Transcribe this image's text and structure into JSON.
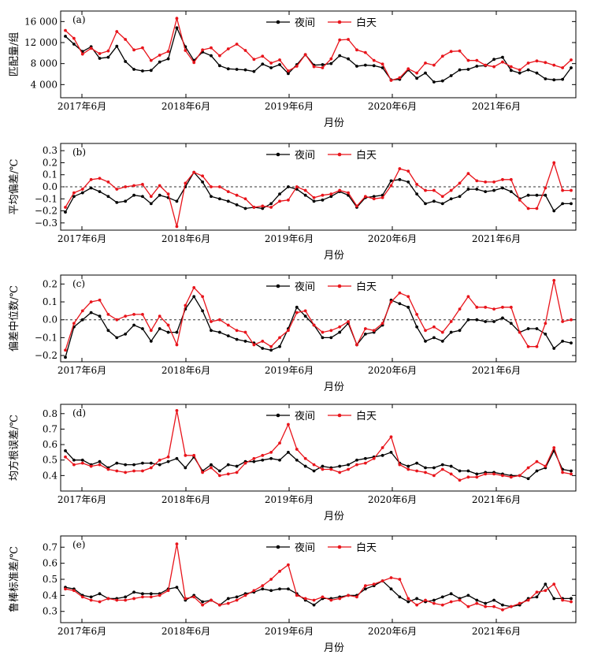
{
  "chart_data": [
    {
      "type": "line",
      "panel_label": "(a)",
      "ylabel": "匹配量/组",
      "xlabel": "月份",
      "x_tick_labels": [
        "2017年6月",
        "2018年6月",
        "2019年6月",
        "2020年6月",
        "2021年6月"
      ],
      "y_ticks": [
        4000,
        8000,
        12000,
        16000
      ],
      "y_tick_labels": [
        "4 000",
        "8 000",
        "12 000",
        "16 000"
      ],
      "ylim": [
        1500,
        18000
      ],
      "zero_line": false,
      "legend": {
        "position": "top-center",
        "entries": [
          "夜间",
          "白天"
        ]
      },
      "colors": {
        "night": "#000000",
        "day": "#e8141b"
      },
      "series": [
        {
          "name": "夜间",
          "values": [
            13200,
            11700,
            10300,
            11200,
            9000,
            9200,
            11300,
            8400,
            6900,
            6600,
            6700,
            8300,
            8900,
            14800,
            11200,
            8600,
            10200,
            9500,
            7600,
            7000,
            6900,
            6800,
            6500,
            7900,
            7200,
            7800,
            6100,
            7800,
            9700,
            7700,
            7800,
            8000,
            9500,
            8900,
            7500,
            7700,
            7600,
            7200,
            4900,
            5000,
            6800,
            5200,
            6200,
            4500,
            4700,
            5700,
            6800,
            6900,
            7500,
            7600,
            8800,
            9200,
            6700,
            6200,
            6800,
            6200,
            5100,
            4900,
            5000,
            7200
          ]
        },
        {
          "name": "白天",
          "values": [
            14300,
            12800,
            9800,
            10900,
            9900,
            10400,
            14100,
            12600,
            10600,
            11000,
            8600,
            9600,
            10300,
            16600,
            10500,
            8200,
            10600,
            11000,
            9500,
            10800,
            11700,
            10500,
            8800,
            9400,
            8100,
            8700,
            6600,
            7500,
            9700,
            7400,
            7200,
            8900,
            12500,
            12600,
            10600,
            10100,
            8600,
            7900,
            4800,
            5300,
            7000,
            6200,
            8100,
            7700,
            9400,
            10300,
            10400,
            8600,
            8600,
            7700,
            7400,
            8300,
            7400,
            6800,
            8100,
            8500,
            8200,
            7700,
            7200,
            8700
          ]
        }
      ]
    },
    {
      "type": "line",
      "panel_label": "(b)",
      "ylabel": "平均偏差/℃",
      "xlabel": "月份",
      "x_tick_labels": [
        "2017年6月",
        "2018年6月",
        "2019年6月",
        "2020年6月",
        "2021年6月"
      ],
      "y_ticks": [
        -0.3,
        -0.2,
        -0.1,
        0.0,
        0.1,
        0.2,
        0.3
      ],
      "y_tick_labels": [
        "−0.3",
        "−0.2",
        "−0.1",
        "0.0",
        "0.1",
        "0.2",
        "0.3"
      ],
      "ylim": [
        -0.36,
        0.36
      ],
      "zero_line": true,
      "legend": {
        "position": "top-center",
        "entries": [
          "夜间",
          "白天"
        ]
      },
      "colors": {
        "night": "#000000",
        "day": "#e8141b"
      },
      "series": [
        {
          "name": "夜间",
          "values": [
            -0.21,
            -0.08,
            -0.05,
            -0.01,
            -0.04,
            -0.08,
            -0.13,
            -0.12,
            -0.07,
            -0.08,
            -0.14,
            -0.07,
            -0.09,
            -0.12,
            0.0,
            0.12,
            0.04,
            -0.08,
            -0.1,
            -0.12,
            -0.15,
            -0.18,
            -0.17,
            -0.18,
            -0.14,
            -0.06,
            0.0,
            -0.02,
            -0.07,
            -0.12,
            -0.11,
            -0.08,
            -0.04,
            -0.07,
            -0.17,
            -0.09,
            -0.08,
            -0.07,
            0.05,
            0.06,
            0.04,
            -0.06,
            -0.14,
            -0.12,
            -0.14,
            -0.1,
            -0.08,
            -0.02,
            -0.02,
            -0.04,
            -0.03,
            -0.01,
            -0.04,
            -0.1,
            -0.07,
            -0.07,
            -0.07,
            -0.2,
            -0.14,
            -0.14
          ]
        },
        {
          "name": "白天",
          "values": [
            -0.17,
            -0.05,
            -0.02,
            0.06,
            0.07,
            0.04,
            -0.02,
            0.0,
            0.01,
            0.02,
            -0.08,
            0.01,
            -0.06,
            -0.33,
            0.03,
            0.12,
            0.09,
            0.0,
            0.0,
            -0.04,
            -0.07,
            -0.1,
            -0.17,
            -0.16,
            -0.17,
            -0.12,
            -0.11,
            0.0,
            -0.03,
            -0.09,
            -0.07,
            -0.06,
            -0.03,
            -0.05,
            -0.16,
            -0.08,
            -0.1,
            -0.09,
            0.01,
            0.15,
            0.13,
            0.02,
            -0.03,
            -0.03,
            -0.08,
            -0.03,
            0.03,
            0.11,
            0.05,
            0.04,
            0.04,
            0.06,
            0.06,
            -0.11,
            -0.18,
            -0.18,
            -0.01,
            0.2,
            -0.03,
            -0.03
          ]
        }
      ]
    },
    {
      "type": "line",
      "panel_label": "(c)",
      "ylabel": "偏差中位数/℃",
      "xlabel": "月份",
      "x_tick_labels": [
        "2017年6月",
        "2018年6月",
        "2019年6月",
        "2020年6月",
        "2021年6月"
      ],
      "y_ticks": [
        -0.2,
        -0.1,
        0.0,
        0.1,
        0.2
      ],
      "y_tick_labels": [
        "−0.2",
        "−0.1",
        "0.0",
        "0.1",
        "0.2"
      ],
      "ylim": [
        -0.235,
        0.25
      ],
      "zero_line": true,
      "legend": {
        "position": "top-center",
        "entries": [
          "夜间",
          "白天"
        ]
      },
      "colors": {
        "night": "#000000",
        "day": "#e8141b"
      },
      "series": [
        {
          "name": "夜间",
          "values": [
            -0.21,
            -0.04,
            0.0,
            0.04,
            0.02,
            -0.06,
            -0.1,
            -0.08,
            -0.03,
            -0.05,
            -0.12,
            -0.05,
            -0.07,
            -0.07,
            0.06,
            0.13,
            0.05,
            -0.06,
            -0.07,
            -0.09,
            -0.11,
            -0.12,
            -0.13,
            -0.16,
            -0.17,
            -0.15,
            -0.05,
            0.07,
            0.02,
            -0.03,
            -0.1,
            -0.1,
            -0.07,
            -0.02,
            -0.14,
            -0.08,
            -0.07,
            -0.03,
            0.11,
            0.09,
            0.07,
            -0.04,
            -0.12,
            -0.1,
            -0.12,
            -0.07,
            -0.06,
            0.0,
            0.0,
            -0.01,
            -0.01,
            0.01,
            -0.02,
            -0.07,
            -0.05,
            -0.05,
            -0.08,
            -0.16,
            -0.12,
            -0.13
          ]
        },
        {
          "name": "白天",
          "values": [
            -0.17,
            -0.02,
            0.05,
            0.1,
            0.11,
            0.03,
            0.0,
            0.02,
            0.03,
            0.03,
            -0.06,
            0.02,
            -0.03,
            -0.14,
            0.08,
            0.18,
            0.13,
            -0.01,
            0.0,
            -0.03,
            -0.06,
            -0.07,
            -0.14,
            -0.12,
            -0.15,
            -0.1,
            -0.06,
            0.04,
            0.05,
            -0.03,
            -0.07,
            -0.06,
            -0.04,
            -0.01,
            -0.14,
            -0.05,
            -0.06,
            -0.02,
            0.1,
            0.15,
            0.13,
            0.03,
            -0.06,
            -0.04,
            -0.07,
            -0.01,
            0.06,
            0.13,
            0.07,
            0.07,
            0.06,
            0.07,
            0.07,
            -0.07,
            -0.15,
            -0.15,
            -0.02,
            0.22,
            -0.01,
            0.0
          ]
        }
      ]
    },
    {
      "type": "line",
      "panel_label": "(d)",
      "ylabel": "均方根误差/℃",
      "xlabel": "月份",
      "x_tick_labels": [
        "2017年6月",
        "2018年6月",
        "2019年6月",
        "2020年6月",
        "2021年6月"
      ],
      "y_ticks": [
        0.4,
        0.5,
        0.6,
        0.7,
        0.8
      ],
      "y_tick_labels": [
        "0.4",
        "0.5",
        "0.6",
        "0.7",
        "0.8"
      ],
      "ylim": [
        0.3,
        0.86
      ],
      "zero_line": false,
      "legend": {
        "position": "top-center",
        "entries": [
          "夜间",
          "白天"
        ]
      },
      "colors": {
        "night": "#000000",
        "day": "#e8141b"
      },
      "series": [
        {
          "name": "夜间",
          "values": [
            0.56,
            0.5,
            0.5,
            0.47,
            0.49,
            0.45,
            0.48,
            0.47,
            0.47,
            0.48,
            0.48,
            0.47,
            0.49,
            0.51,
            0.45,
            0.52,
            0.43,
            0.47,
            0.43,
            0.47,
            0.46,
            0.49,
            0.49,
            0.5,
            0.51,
            0.5,
            0.55,
            0.5,
            0.46,
            0.43,
            0.46,
            0.45,
            0.46,
            0.47,
            0.5,
            0.51,
            0.52,
            0.53,
            0.55,
            0.48,
            0.46,
            0.48,
            0.45,
            0.45,
            0.47,
            0.46,
            0.43,
            0.43,
            0.41,
            0.42,
            0.42,
            0.41,
            0.4,
            0.4,
            0.38,
            0.43,
            0.45,
            0.56,
            0.44,
            0.43
          ]
        },
        {
          "name": "白天",
          "values": [
            0.52,
            0.47,
            0.48,
            0.46,
            0.47,
            0.44,
            0.43,
            0.42,
            0.43,
            0.43,
            0.45,
            0.5,
            0.52,
            0.82,
            0.53,
            0.53,
            0.42,
            0.45,
            0.4,
            0.41,
            0.42,
            0.48,
            0.51,
            0.53,
            0.55,
            0.61,
            0.73,
            0.57,
            0.51,
            0.47,
            0.44,
            0.44,
            0.42,
            0.44,
            0.47,
            0.48,
            0.51,
            0.58,
            0.65,
            0.47,
            0.44,
            0.43,
            0.42,
            0.4,
            0.44,
            0.41,
            0.37,
            0.39,
            0.39,
            0.41,
            0.41,
            0.4,
            0.39,
            0.4,
            0.45,
            0.49,
            0.46,
            0.58,
            0.42,
            0.41
          ]
        }
      ]
    },
    {
      "type": "line",
      "panel_label": "(e)",
      "ylabel": "鲁棒标准差/℃",
      "xlabel": "月份",
      "x_tick_labels": [
        "2017年6月",
        "2018年6月",
        "2019年6月",
        "2020年6月",
        "2021年6月"
      ],
      "y_ticks": [
        0.3,
        0.4,
        0.5,
        0.6,
        0.7
      ],
      "y_tick_labels": [
        "0.3",
        "0.4",
        "0.5",
        "0.6",
        "0.7"
      ],
      "ylim": [
        0.23,
        0.77
      ],
      "zero_line": false,
      "legend": {
        "position": "top-center",
        "entries": [
          "夜间",
          "白天"
        ]
      },
      "colors": {
        "night": "#000000",
        "day": "#e8141b"
      },
      "series": [
        {
          "name": "夜间",
          "values": [
            0.45,
            0.44,
            0.4,
            0.39,
            0.41,
            0.38,
            0.38,
            0.39,
            0.42,
            0.41,
            0.41,
            0.41,
            0.44,
            0.45,
            0.37,
            0.4,
            0.36,
            0.37,
            0.34,
            0.38,
            0.39,
            0.41,
            0.42,
            0.44,
            0.43,
            0.44,
            0.44,
            0.41,
            0.37,
            0.34,
            0.38,
            0.38,
            0.39,
            0.4,
            0.4,
            0.44,
            0.46,
            0.49,
            0.44,
            0.39,
            0.36,
            0.38,
            0.36,
            0.37,
            0.39,
            0.41,
            0.38,
            0.4,
            0.37,
            0.35,
            0.37,
            0.34,
            0.33,
            0.34,
            0.38,
            0.39,
            0.47,
            0.38,
            0.38,
            0.38
          ]
        },
        {
          "name": "白天",
          "values": [
            0.44,
            0.43,
            0.39,
            0.37,
            0.36,
            0.38,
            0.37,
            0.37,
            0.38,
            0.39,
            0.39,
            0.4,
            0.43,
            0.72,
            0.38,
            0.39,
            0.34,
            0.37,
            0.34,
            0.35,
            0.37,
            0.4,
            0.43,
            0.46,
            0.5,
            0.55,
            0.59,
            0.4,
            0.38,
            0.37,
            0.39,
            0.37,
            0.38,
            0.4,
            0.39,
            0.46,
            0.47,
            0.49,
            0.51,
            0.5,
            0.38,
            0.34,
            0.37,
            0.35,
            0.34,
            0.36,
            0.37,
            0.33,
            0.35,
            0.33,
            0.33,
            0.31,
            0.33,
            0.35,
            0.37,
            0.42,
            0.43,
            0.47,
            0.37,
            0.36
          ]
        }
      ]
    }
  ]
}
